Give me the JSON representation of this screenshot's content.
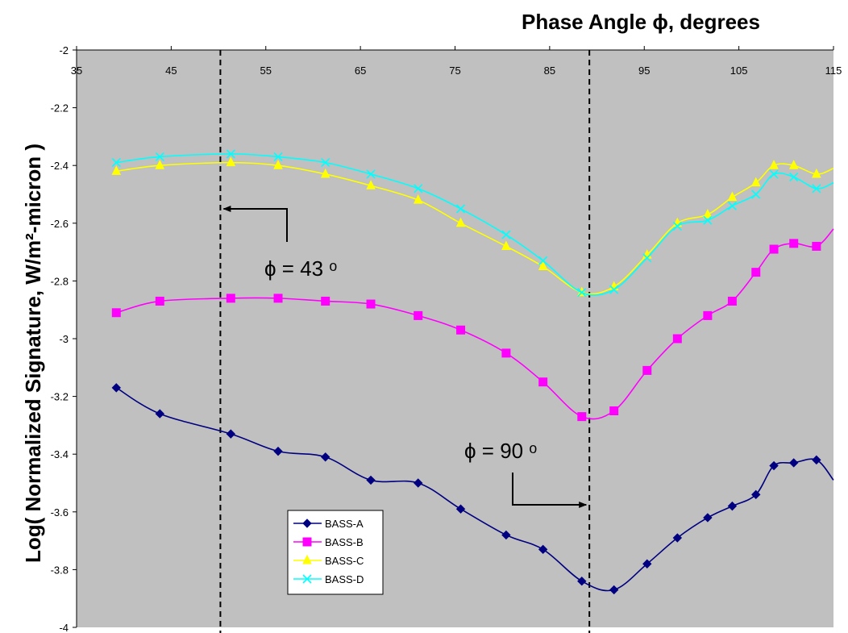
{
  "chart_data": {
    "type": "line",
    "title": "",
    "xlabel": "Phase Angle ϕ, degrees",
    "ylabel": "Log( Normalized Signature, W/m²-micron )",
    "xlim": [
      35,
      115
    ],
    "ylim": [
      -4,
      -2
    ],
    "xticks": [
      35,
      45,
      55,
      65,
      75,
      85,
      95,
      105,
      115
    ],
    "yticks": [
      -2,
      -2.2,
      -2.4,
      -2.6,
      -2.8,
      -3,
      -3.2,
      -3.4,
      -3.6,
      -3.8,
      -4
    ],
    "x_axis_position": "top",
    "grid": false,
    "plot_background": "#c0c0c0",
    "legend_position": "lower-left",
    "series": [
      {
        "name": "BASS-A",
        "color": "#000080",
        "marker": "diamond",
        "points": [
          [
            39.2,
            -3.17
          ],
          [
            43.8,
            -3.26
          ],
          [
            51.3,
            -3.33
          ],
          [
            56.3,
            -3.39
          ],
          [
            61.3,
            -3.41
          ],
          [
            66.1,
            -3.49
          ],
          [
            71.1,
            -3.5
          ],
          [
            75.6,
            -3.59
          ],
          [
            80.4,
            -3.68
          ],
          [
            84.3,
            -3.73
          ],
          [
            88.4,
            -3.84
          ],
          [
            91.8,
            -3.87
          ],
          [
            95.3,
            -3.78
          ],
          [
            98.5,
            -3.69
          ],
          [
            101.7,
            -3.62
          ],
          [
            104.3,
            -3.58
          ],
          [
            106.8,
            -3.54
          ],
          [
            108.7,
            -3.44
          ],
          [
            110.8,
            -3.43
          ],
          [
            113.2,
            -3.42
          ],
          [
            115.0,
            -3.49
          ]
        ]
      },
      {
        "name": "BASS-B",
        "color": "#ff00ff",
        "marker": "square",
        "points": [
          [
            39.2,
            -2.91
          ],
          [
            43.8,
            -2.87
          ],
          [
            51.3,
            -2.86
          ],
          [
            56.3,
            -2.86
          ],
          [
            61.3,
            -2.87
          ],
          [
            66.1,
            -2.88
          ],
          [
            71.1,
            -2.92
          ],
          [
            75.6,
            -2.97
          ],
          [
            80.4,
            -3.05
          ],
          [
            84.3,
            -3.15
          ],
          [
            88.4,
            -3.27
          ],
          [
            91.8,
            -3.25
          ],
          [
            95.3,
            -3.11
          ],
          [
            98.5,
            -3.0
          ],
          [
            101.7,
            -2.92
          ],
          [
            104.3,
            -2.87
          ],
          [
            106.8,
            -2.77
          ],
          [
            108.7,
            -2.69
          ],
          [
            110.8,
            -2.67
          ],
          [
            113.2,
            -2.68
          ],
          [
            115.0,
            -2.62
          ]
        ]
      },
      {
        "name": "BASS-C",
        "color": "#ffff00",
        "marker": "triangle",
        "points": [
          [
            39.2,
            -2.42
          ],
          [
            43.8,
            -2.4
          ],
          [
            51.3,
            -2.39
          ],
          [
            56.3,
            -2.4
          ],
          [
            61.3,
            -2.43
          ],
          [
            66.1,
            -2.47
          ],
          [
            71.1,
            -2.52
          ],
          [
            75.6,
            -2.6
          ],
          [
            80.4,
            -2.68
          ],
          [
            84.3,
            -2.75
          ],
          [
            88.4,
            -2.84
          ],
          [
            91.8,
            -2.82
          ],
          [
            95.3,
            -2.71
          ],
          [
            98.5,
            -2.6
          ],
          [
            101.7,
            -2.57
          ],
          [
            104.3,
            -2.51
          ],
          [
            106.8,
            -2.46
          ],
          [
            108.7,
            -2.4
          ],
          [
            110.8,
            -2.4
          ],
          [
            113.2,
            -2.43
          ],
          [
            115.0,
            -2.41
          ]
        ]
      },
      {
        "name": "BASS-D",
        "color": "#00ffff",
        "marker": "x",
        "points": [
          [
            39.2,
            -2.39
          ],
          [
            43.8,
            -2.37
          ],
          [
            51.3,
            -2.36
          ],
          [
            56.3,
            -2.37
          ],
          [
            61.3,
            -2.39
          ],
          [
            66.1,
            -2.43
          ],
          [
            71.1,
            -2.48
          ],
          [
            75.6,
            -2.55
          ],
          [
            80.4,
            -2.64
          ],
          [
            84.3,
            -2.73
          ],
          [
            88.4,
            -2.84
          ],
          [
            91.8,
            -2.83
          ],
          [
            95.3,
            -2.72
          ],
          [
            98.5,
            -2.61
          ],
          [
            101.7,
            -2.59
          ],
          [
            104.3,
            -2.54
          ],
          [
            106.8,
            -2.5
          ],
          [
            108.7,
            -2.43
          ],
          [
            110.8,
            -2.44
          ],
          [
            113.2,
            -2.48
          ],
          [
            115.0,
            -2.46
          ]
        ]
      }
    ],
    "annotations": [
      {
        "text": "ϕ = 43 ᵒ",
        "vline_x": 50.2,
        "arrow_direction": "left"
      },
      {
        "text": "ϕ = 90 ᵒ",
        "vline_x": 89.2,
        "arrow_direction": "right"
      }
    ]
  }
}
